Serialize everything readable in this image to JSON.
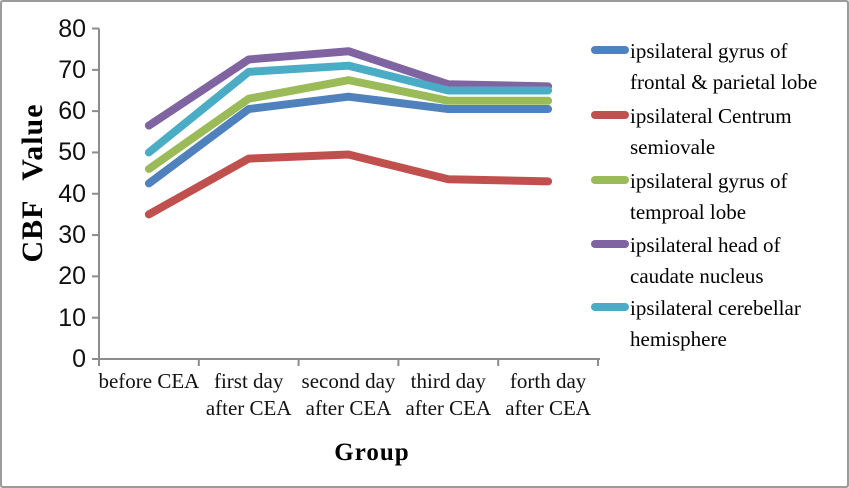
{
  "figure": {
    "background": "#ffffff",
    "border_color": "#9b9b9b"
  },
  "chart_data": {
    "type": "line",
    "title": "",
    "xlabel": "Group",
    "ylabel": "CBF Value",
    "ylim": [
      0,
      80
    ],
    "yticks": [
      0,
      10,
      20,
      30,
      40,
      50,
      60,
      70,
      80
    ],
    "grid": false,
    "legend_position": "right",
    "axis_color": "#8c8c8c",
    "line_width": 8,
    "categories": [
      "before CEA",
      "first day after CEA",
      "second day after CEA",
      "third day after CEA",
      "forth day after CEA"
    ],
    "category_lines": [
      [
        "before CEA"
      ],
      [
        "first day",
        "after CEA"
      ],
      [
        "second day",
        "after CEA"
      ],
      [
        "third day",
        "after CEA"
      ],
      [
        "forth day",
        "after CEA"
      ]
    ],
    "series": [
      {
        "name": "ipsilateral gyrus of frontal & parietal lobe",
        "legend_lines": [
          "ipsilateral gyrus of",
          "frontal & parietal lobe"
        ],
        "color": "#4F81BD",
        "values": [
          42.5,
          60.5,
          63.5,
          60.5,
          60.5
        ]
      },
      {
        "name": "ipsilateral Centrum semiovale",
        "legend_lines": [
          "ipsilateral Centrum",
          "semiovale"
        ],
        "color": "#C0504D",
        "values": [
          35,
          48.5,
          49.5,
          43.5,
          43
        ]
      },
      {
        "name": "ipsilateral gyrus of temproal lobe",
        "legend_lines": [
          "ipsilateral gyrus of",
          "temproal lobe"
        ],
        "color": "#9BBB59",
        "values": [
          46,
          63,
          67.5,
          62.5,
          62.5
        ]
      },
      {
        "name": "ipsilateral head of caudate nucleus",
        "legend_lines": [
          "ipsilateral head of",
          "caudate nucleus"
        ],
        "color": "#8064A2",
        "values": [
          56.5,
          72.5,
          74.5,
          66.5,
          66
        ]
      },
      {
        "name": "ipsilateral cerebellar hemisphere",
        "legend_lines": [
          "ipsilateral cerebellar",
          "hemisphere"
        ],
        "color": "#4BACC6",
        "values": [
          50,
          69.5,
          71,
          65,
          65
        ]
      }
    ]
  }
}
